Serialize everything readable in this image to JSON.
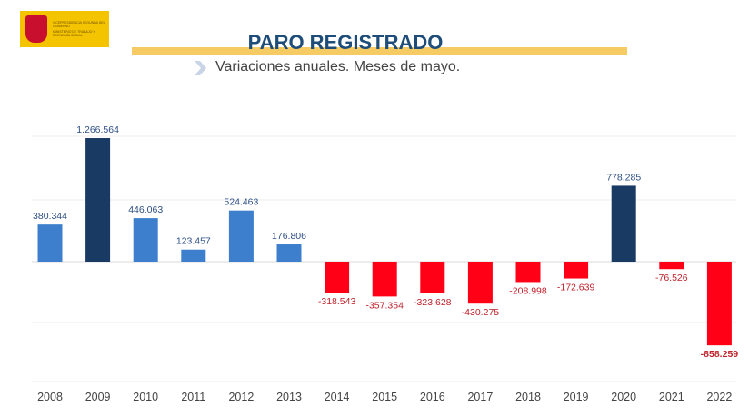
{
  "header": {
    "logo_text": [
      "VICEPRESIDENCIA SEGUNDA DEL GOBIERNO",
      "MINISTERIO DE TRABAJO Y ECONOMÍA SOCIAL"
    ],
    "title": "PARO REGISTRADO",
    "subtitle": "Variaciones anuales. Meses de mayo."
  },
  "chart_data": {
    "type": "bar",
    "title": "PARO REGISTRADO",
    "subtitle": "Variaciones anuales. Meses de mayo.",
    "categories": [
      "2008",
      "2009",
      "2010",
      "2011",
      "2012",
      "2013",
      "2014",
      "2015",
      "2016",
      "2017",
      "2018",
      "2019",
      "2020",
      "2021",
      "2022"
    ],
    "values": [
      380344,
      1266564,
      446063,
      123457,
      524463,
      176806,
      -318543,
      -357354,
      -323628,
      -430275,
      -208998,
      -172639,
      778285,
      -76526,
      -858259
    ],
    "labels": [
      "380.344",
      "1.266.564",
      "446.063",
      "123.457",
      "524.463",
      "176.806",
      "-318.543",
      "-357.354",
      "-323.628",
      "-430.275",
      "-208.998",
      "-172.639",
      "778.285",
      "-76.526",
      "-858.259"
    ],
    "bar_colors": [
      "#3d7fcc",
      "#183a63",
      "#3d7fcc",
      "#3d7fcc",
      "#3d7fcc",
      "#3d7fcc",
      "#ff0016",
      "#ff0016",
      "#ff0016",
      "#ff0016",
      "#ff0016",
      "#ff0016",
      "#183a63",
      "#ff0016",
      "#ff0016"
    ],
    "positive_label_color": "#2d4f86",
    "negative_label_color": "#c0212b",
    "grid": true,
    "legend": "none"
  }
}
